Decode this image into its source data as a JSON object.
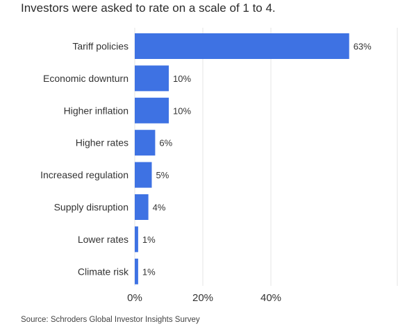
{
  "subtitle": "Investors were asked to rate on a scale of 1 to 4.",
  "source": "Source: Schroders Global Investor Insights Survey",
  "colors": {
    "bar": "#3e72e3",
    "grid": "#e6e6e6",
    "text": "#333333"
  },
  "chart_data": {
    "type": "bar",
    "orientation": "horizontal",
    "categories": [
      "Tariff policies",
      "Economic downturn",
      "Higher inflation",
      "Higher rates",
      "Increased regulation",
      "Supply disruption",
      "Lower rates",
      "Climate risk"
    ],
    "values": [
      63,
      10,
      10,
      6,
      5,
      4,
      1,
      1
    ],
    "data_labels": [
      "63%",
      "10%",
      "10%",
      "6%",
      "5%",
      "4%",
      "1%",
      "1%"
    ],
    "title": "",
    "xlabel": "",
    "ylabel": "",
    "xlim": [
      0,
      75
    ],
    "xticks": [
      0,
      20,
      40
    ],
    "xtick_labels": [
      "0%",
      "20%",
      "40%"
    ],
    "grid": true,
    "legend": "none"
  }
}
